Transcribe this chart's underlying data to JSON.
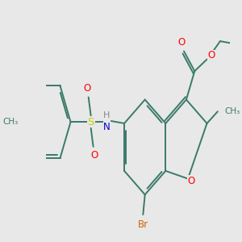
{
  "background_color": "#e8e8e8",
  "bond_color": "#3a7a6a",
  "colors": {
    "O": "#ff0000",
    "N": "#0000cc",
    "S": "#cccc00",
    "Br": "#cc6600",
    "C": "#3a7a6a",
    "H": "#888888"
  },
  "font_size": 8.5,
  "lw": 1.4
}
